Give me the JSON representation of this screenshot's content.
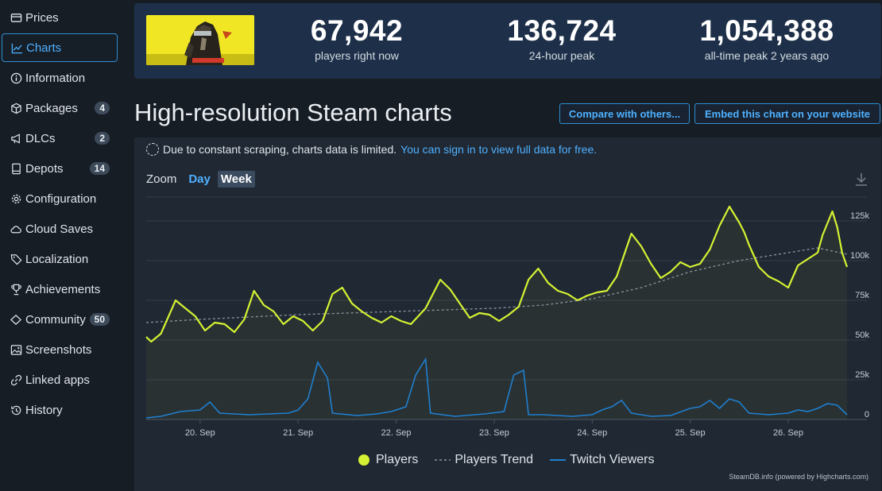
{
  "sidebar": {
    "items": [
      {
        "label": "Prices",
        "icon": "prices-icon",
        "badge": ""
      },
      {
        "label": "Charts",
        "icon": "chart-line-icon",
        "badge": "",
        "active": true
      },
      {
        "label": "Information",
        "icon": "info-icon",
        "badge": ""
      },
      {
        "label": "Packages",
        "icon": "package-icon",
        "badge": "4"
      },
      {
        "label": "DLCs",
        "icon": "dlc-icon",
        "badge": "2"
      },
      {
        "label": "Depots",
        "icon": "depot-icon",
        "badge": "14"
      },
      {
        "label": "Configuration",
        "icon": "gear-icon",
        "badge": ""
      },
      {
        "label": "Cloud Saves",
        "icon": "cloud-icon",
        "badge": ""
      },
      {
        "label": "Localization",
        "icon": "tag-icon",
        "badge": ""
      },
      {
        "label": "Achievements",
        "icon": "trophy-icon",
        "badge": ""
      },
      {
        "label": "Community",
        "icon": "community-icon",
        "badge": "50"
      },
      {
        "label": "Screenshots",
        "icon": "image-icon",
        "badge": ""
      },
      {
        "label": "Linked apps",
        "icon": "link-icon",
        "badge": ""
      },
      {
        "label": "History",
        "icon": "history-icon",
        "badge": ""
      }
    ]
  },
  "stats": {
    "current": {
      "value": "67,942",
      "label": "players right now"
    },
    "peak24": {
      "value": "136,724",
      "label": "24-hour peak"
    },
    "alltime": {
      "value": "1,054,388",
      "label": "all-time peak 2 years ago"
    }
  },
  "heading": "High-resolution Steam charts",
  "buttons": {
    "compare": "Compare with others...",
    "embed": "Embed this chart on your website"
  },
  "notice": {
    "text": "Due to constant scraping, charts data is limited.",
    "link": "You can sign in to view full data for free."
  },
  "zoom": {
    "label": "Zoom",
    "day": "Day",
    "week": "Week"
  },
  "legend": {
    "players": "Players",
    "trend": "Players Trend",
    "twitch": "Twitch Viewers"
  },
  "credit": "SteamDB.info (powered by Highcharts.com)",
  "colors": {
    "players": "#d4f233",
    "trend": "#8a949e",
    "twitch": "#1f7fcf",
    "accent": "#4fb1ff"
  },
  "chart_data": {
    "type": "line",
    "x_ticks": [
      "20. Sep",
      "21. Sep",
      "22. Sep",
      "23. Sep",
      "24. Sep",
      "25. Sep",
      "26. Sep"
    ],
    "y_ticks": [
      "0",
      "25k",
      "50k",
      "75k",
      "100k",
      "125k"
    ],
    "ylim": [
      0,
      140000
    ],
    "xlim": [
      19.45,
      26.6
    ],
    "grid": true,
    "legend_position": "bottom",
    "series": [
      {
        "name": "Players",
        "points": [
          [
            19.45,
            52000
          ],
          [
            19.5,
            49000
          ],
          [
            19.6,
            54000
          ],
          [
            19.75,
            75000
          ],
          [
            19.85,
            70000
          ],
          [
            19.95,
            65000
          ],
          [
            20.05,
            56000
          ],
          [
            20.15,
            61000
          ],
          [
            20.25,
            60000
          ],
          [
            20.35,
            55000
          ],
          [
            20.45,
            63000
          ],
          [
            20.55,
            81000
          ],
          [
            20.65,
            72000
          ],
          [
            20.75,
            68000
          ],
          [
            20.85,
            60000
          ],
          [
            20.95,
            65000
          ],
          [
            21.05,
            62000
          ],
          [
            21.15,
            56000
          ],
          [
            21.25,
            62000
          ],
          [
            21.35,
            79000
          ],
          [
            21.45,
            83000
          ],
          [
            21.55,
            73000
          ],
          [
            21.65,
            68000
          ],
          [
            21.75,
            64000
          ],
          [
            21.85,
            61000
          ],
          [
            21.95,
            65000
          ],
          [
            22.05,
            62000
          ],
          [
            22.15,
            60000
          ],
          [
            22.3,
            70000
          ],
          [
            22.45,
            88000
          ],
          [
            22.55,
            82000
          ],
          [
            22.65,
            73000
          ],
          [
            22.75,
            64000
          ],
          [
            22.85,
            67000
          ],
          [
            22.95,
            66000
          ],
          [
            23.05,
            62000
          ],
          [
            23.15,
            66000
          ],
          [
            23.25,
            71000
          ],
          [
            23.35,
            88000
          ],
          [
            23.45,
            95000
          ],
          [
            23.55,
            86000
          ],
          [
            23.65,
            81000
          ],
          [
            23.75,
            79000
          ],
          [
            23.85,
            75000
          ],
          [
            23.95,
            78000
          ],
          [
            24.05,
            80000
          ],
          [
            24.15,
            81000
          ],
          [
            24.25,
            90000
          ],
          [
            24.4,
            117000
          ],
          [
            24.5,
            109000
          ],
          [
            24.6,
            98000
          ],
          [
            24.7,
            89000
          ],
          [
            24.8,
            93000
          ],
          [
            24.9,
            99000
          ],
          [
            25.0,
            96000
          ],
          [
            25.1,
            98000
          ],
          [
            25.2,
            107000
          ],
          [
            25.3,
            122000
          ],
          [
            25.4,
            134000
          ],
          [
            25.5,
            124000
          ],
          [
            25.55,
            118000
          ],
          [
            25.6,
            110000
          ],
          [
            25.7,
            96000
          ],
          [
            25.8,
            90000
          ],
          [
            25.9,
            87000
          ],
          [
            26.0,
            83000
          ],
          [
            26.1,
            97000
          ],
          [
            26.2,
            101000
          ],
          [
            26.3,
            105000
          ],
          [
            26.35,
            116000
          ],
          [
            26.45,
            131000
          ],
          [
            26.5,
            121000
          ],
          [
            26.55,
            105000
          ],
          [
            26.6,
            96000
          ]
        ]
      },
      {
        "name": "Players Trend",
        "points": [
          [
            19.45,
            61000
          ],
          [
            20.0,
            63000
          ],
          [
            21.0,
            66000
          ],
          [
            22.0,
            68000
          ],
          [
            23.0,
            70000
          ],
          [
            23.5,
            72000
          ],
          [
            24.0,
            76000
          ],
          [
            24.5,
            83000
          ],
          [
            25.0,
            93000
          ],
          [
            25.5,
            100000
          ],
          [
            26.0,
            105000
          ],
          [
            26.3,
            108000
          ],
          [
            26.6,
            104000
          ]
        ]
      },
      {
        "name": "Twitch Viewers",
        "points": [
          [
            19.45,
            1000
          ],
          [
            19.6,
            2000
          ],
          [
            19.8,
            5000
          ],
          [
            20.0,
            6000
          ],
          [
            20.1,
            11000
          ],
          [
            20.2,
            4000
          ],
          [
            20.5,
            3000
          ],
          [
            20.9,
            4000
          ],
          [
            21.0,
            6000
          ],
          [
            21.1,
            13000
          ],
          [
            21.2,
            36000
          ],
          [
            21.3,
            26000
          ],
          [
            21.35,
            4000
          ],
          [
            21.6,
            2500
          ],
          [
            21.8,
            3500
          ],
          [
            21.95,
            5000
          ],
          [
            22.1,
            8000
          ],
          [
            22.2,
            28000
          ],
          [
            22.3,
            38000
          ],
          [
            22.35,
            4000
          ],
          [
            22.6,
            2000
          ],
          [
            22.9,
            3500
          ],
          [
            23.1,
            5000
          ],
          [
            23.2,
            28000
          ],
          [
            23.3,
            31000
          ],
          [
            23.35,
            3000
          ],
          [
            23.5,
            3000
          ],
          [
            23.8,
            2000
          ],
          [
            24.0,
            3000
          ],
          [
            24.1,
            6000
          ],
          [
            24.2,
            8000
          ],
          [
            24.3,
            12000
          ],
          [
            24.4,
            4000
          ],
          [
            24.6,
            2000
          ],
          [
            24.8,
            2500
          ],
          [
            25.0,
            7000
          ],
          [
            25.1,
            8000
          ],
          [
            25.2,
            12000
          ],
          [
            25.3,
            7000
          ],
          [
            25.4,
            13000
          ],
          [
            25.5,
            11000
          ],
          [
            25.6,
            4000
          ],
          [
            25.8,
            3000
          ],
          [
            26.0,
            4000
          ],
          [
            26.1,
            6000
          ],
          [
            26.2,
            5000
          ],
          [
            26.3,
            7000
          ],
          [
            26.4,
            10000
          ],
          [
            26.5,
            9000
          ],
          [
            26.6,
            3000
          ]
        ]
      }
    ]
  }
}
